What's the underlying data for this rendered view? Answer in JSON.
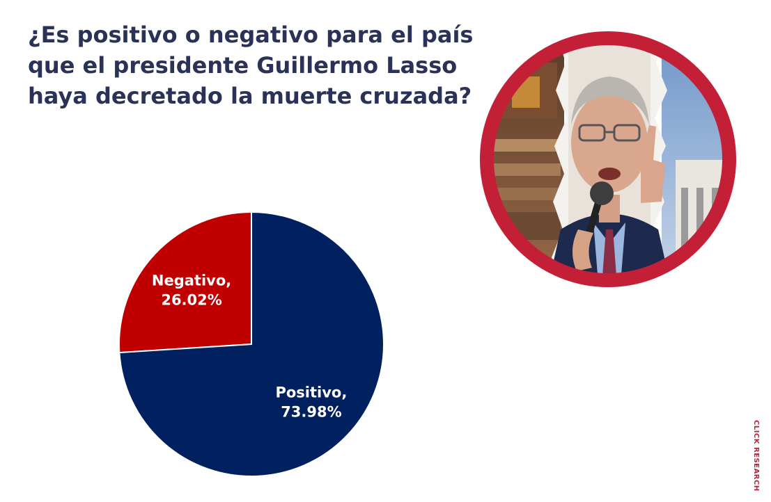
{
  "title": "¿Es positivo o negativo para el país que el presidente Guillermo Lasso haya decretado la muerte cruzada?",
  "brand": "CLICK RESEARCH",
  "photo": {
    "icon": "president-photo",
    "ring_color": "#c32038"
  },
  "chart_data": {
    "type": "pie",
    "title": "¿Es positivo o negativo para el país que el presidente Guillermo Lasso haya decretado la muerte cruzada?",
    "slices": [
      {
        "label": "Negativo",
        "value": 26.02,
        "display": "Negativo,",
        "value_text": "26.02%",
        "color": "#c00000"
      },
      {
        "label": "Positivo",
        "value": 73.98,
        "display": "Positivo,",
        "value_text": "73.98%",
        "color": "#002060"
      }
    ],
    "legend": "none",
    "data_labels": "inside"
  }
}
